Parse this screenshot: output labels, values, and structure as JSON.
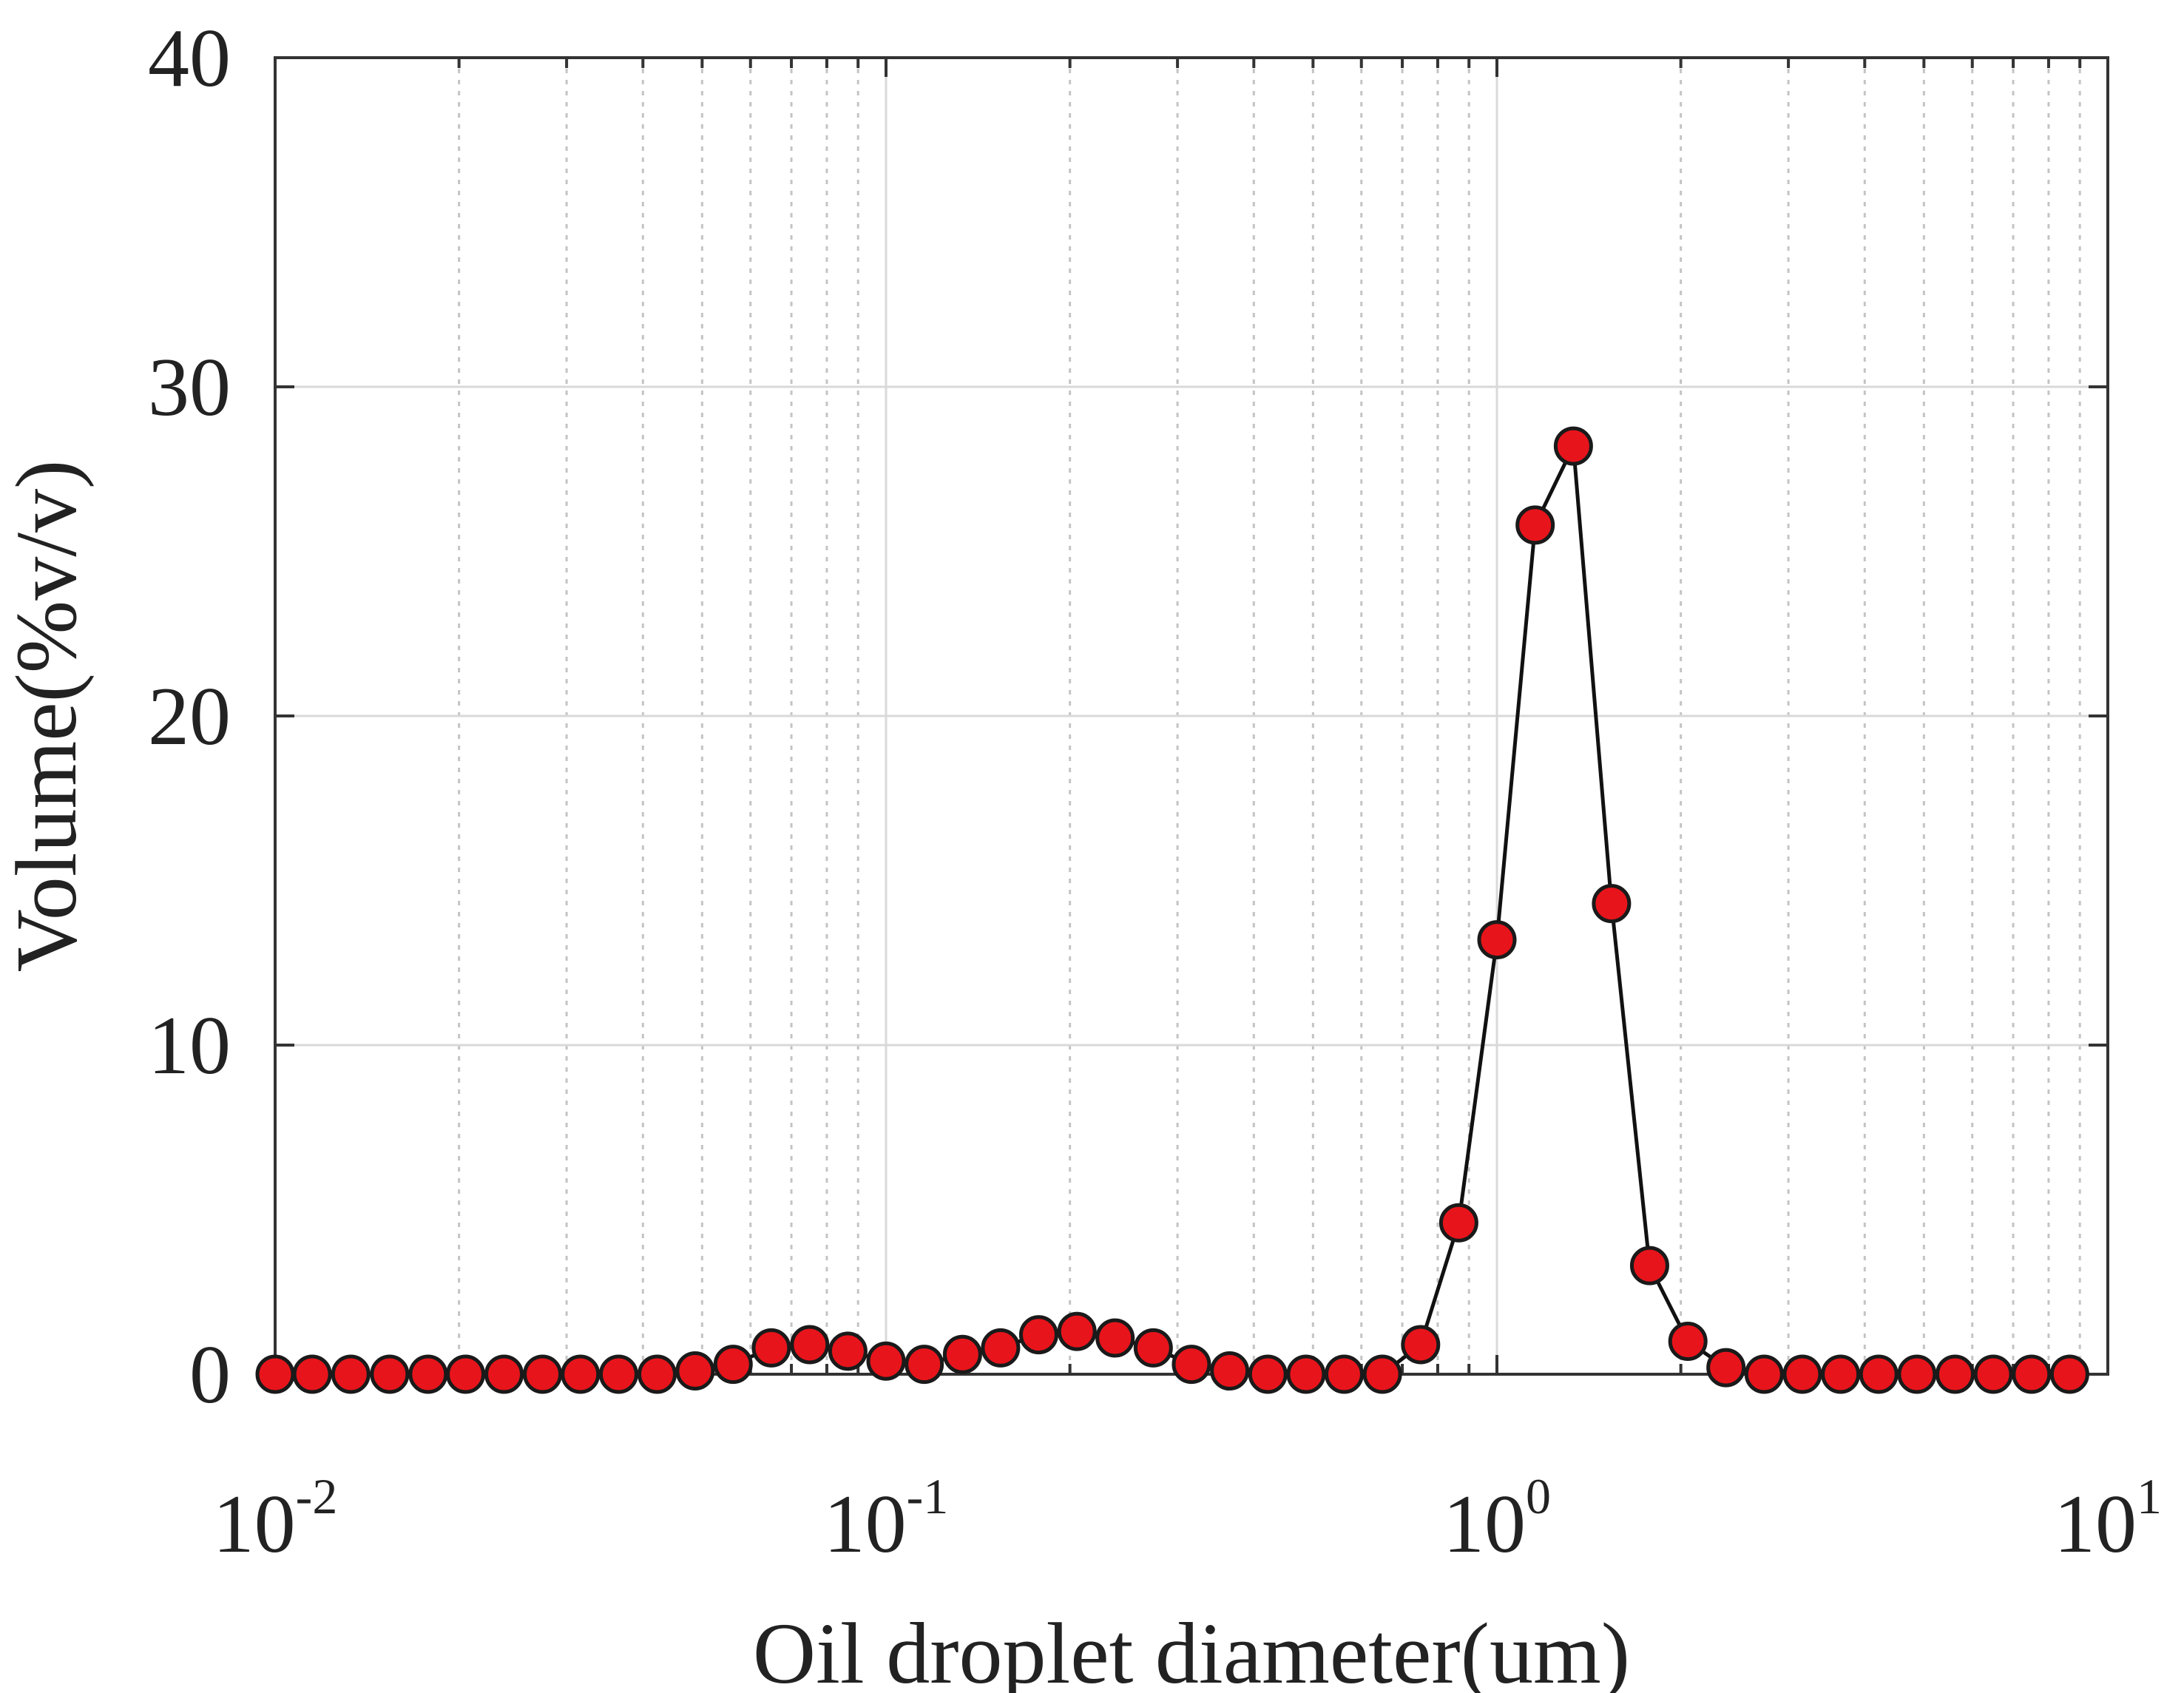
{
  "chart_data": {
    "type": "scatter",
    "x_scale": "log",
    "xlim": [
      0.01,
      10
    ],
    "ylim": [
      0,
      40
    ],
    "grid": true,
    "xlabel": "Oil droplet diameter(um)",
    "ylabel": "Volume(%v/v)",
    "x_ticks": [
      {
        "base": "10",
        "exp": "-2",
        "value": 0.01
      },
      {
        "base": "10",
        "exp": "-1",
        "value": 0.1
      },
      {
        "base": "10",
        "exp": "0",
        "value": 1
      },
      {
        "base": "10",
        "exp": "1",
        "value": 10
      }
    ],
    "y_ticks": [
      {
        "label": "0",
        "value": 0
      },
      {
        "label": "10",
        "value": 10
      },
      {
        "label": "20",
        "value": 20
      },
      {
        "label": "30",
        "value": 30
      },
      {
        "label": "40",
        "value": 40
      }
    ],
    "colors": {
      "marker_fill": "#e8141b",
      "marker_edge": "#1a1a1a",
      "line": "#111111"
    },
    "series": [
      {
        "x": [
          0.01,
          0.0115,
          0.0133,
          0.0154,
          0.0178,
          0.0205,
          0.0237,
          0.0274,
          0.0316,
          0.0365,
          0.0422,
          0.0487,
          0.0562,
          0.0649,
          0.075,
          0.0866,
          0.1,
          0.1155,
          0.1334,
          0.154,
          0.1778,
          0.2054,
          0.2371,
          0.2738,
          0.3162,
          0.3652,
          0.4217,
          0.487,
          0.5623,
          0.6494,
          0.75,
          0.866,
          1.0,
          1.155,
          1.334,
          1.54,
          1.778,
          2.054,
          2.371,
          2.738,
          3.162,
          3.652,
          4.217,
          4.87,
          5.623,
          6.494,
          7.5,
          8.66
        ],
        "y": [
          0,
          0,
          0,
          0,
          0,
          0,
          0,
          0,
          0,
          0,
          0,
          0.1,
          0.3,
          0.8,
          0.9,
          0.7,
          0.4,
          0.3,
          0.6,
          0.8,
          1.2,
          1.3,
          1.1,
          0.8,
          0.3,
          0.1,
          0,
          0,
          0,
          0,
          0.9,
          4.6,
          13.2,
          25.8,
          28.2,
          14.3,
          3.3,
          1.0,
          0.2,
          0,
          0,
          0,
          0,
          0,
          0,
          0,
          0,
          0
        ]
      }
    ]
  }
}
